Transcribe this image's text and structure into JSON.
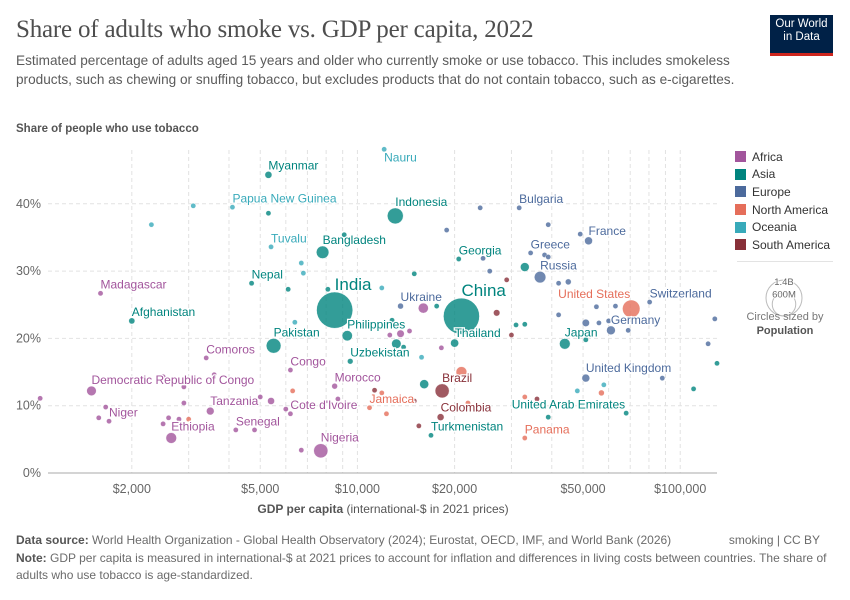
{
  "title": "Share of adults who smoke vs. GDP per capita, 2022",
  "subtitle": "Estimated percentage of adults aged 15 years and older who currently smoke or use tobacco. This includes smokeless products, such as chewing or snuffing tobacco, but excludes products that do not contain tobacco, such as e-cigarettes.",
  "logo": {
    "line1": "Our World",
    "line2": "in Data"
  },
  "footer": {
    "source_label": "Data source:",
    "source_text": " World Health Organization - Global Health Observatory (2024); Eurostat, OECD, IMF, and World Bank (2026)",
    "license": "smoking | CC BY",
    "note_label": "Note:",
    "note_text": " GDP per capita is measured in international-$ at 2021 prices to account for inflation and differences in living costs between countries. The share of adults who use tobacco is age-standardized."
  },
  "legend": {
    "items": [
      {
        "label": "Africa",
        "color": "#a2559c"
      },
      {
        "label": "Asia",
        "color": "#00847e"
      },
      {
        "label": "Europe",
        "color": "#4c6a9c"
      },
      {
        "label": "North America",
        "color": "#e56e5a"
      },
      {
        "label": "Oceania",
        "color": "#38aaba"
      },
      {
        "label": "South America",
        "color": "#883039"
      }
    ],
    "size_big": "1.4B",
    "size_small": "600M",
    "size_note": "Circles sized by",
    "size_var": "Population"
  },
  "chart_data": {
    "type": "scatter",
    "title": "Share of adults who smoke vs. GDP per capita, 2022",
    "ylabel": "Share of people who use tobacco",
    "xlabel_bold": "GDP per capita",
    "xlabel_rest": " (international-$ in 2021 prices)",
    "x_scale": "log",
    "xlim": [
      1100,
      130000
    ],
    "ylim": [
      0,
      48
    ],
    "grid": true,
    "legend_position": "right",
    "x_ticks": [
      {
        "v": 2000,
        "label": "$2,000"
      },
      {
        "v": 5000,
        "label": "$5,000"
      },
      {
        "v": 10000,
        "label": "$10,000"
      },
      {
        "v": 20000,
        "label": "$20,000"
      },
      {
        "v": 50000,
        "label": "$50,000"
      },
      {
        "v": 100000,
        "label": "$100,000"
      }
    ],
    "y_ticks": [
      {
        "v": 0,
        "label": "0%"
      },
      {
        "v": 10,
        "label": "10%"
      },
      {
        "v": 20,
        "label": "20%"
      },
      {
        "v": 30,
        "label": "30%"
      },
      {
        "v": 40,
        "label": "40%"
      }
    ],
    "points": [
      {
        "name": "Nauru",
        "continent": "Oceania",
        "gdp": 12100,
        "share": 48.1,
        "pop": 0.01
      },
      {
        "name": "Myanmar",
        "continent": "Asia",
        "gdp": 5300,
        "share": 44.3,
        "pop": 54
      },
      {
        "name": "Papua New Guinea",
        "continent": "Oceania",
        "gdp": 4100,
        "share": 39.5,
        "pop": 10
      },
      {
        "name": "Indonesia",
        "continent": "Asia",
        "gdp": 13100,
        "share": 38.2,
        "pop": 275
      },
      {
        "name": "Tuvalu",
        "continent": "Oceania",
        "gdp": 5400,
        "share": 33.6,
        "pop": 0.01
      },
      {
        "name": "Bangladesh",
        "continent": "Asia",
        "gdp": 7800,
        "share": 32.8,
        "pop": 171
      },
      {
        "name": "Nepal",
        "continent": "Asia",
        "gdp": 4700,
        "share": 28.2,
        "pop": 30
      },
      {
        "name": "Madagascar",
        "continent": "Africa",
        "gdp": 1600,
        "share": 26.7,
        "pop": 30
      },
      {
        "name": "India",
        "continent": "Asia",
        "gdp": 8500,
        "share": 24.2,
        "pop": 1420
      },
      {
        "name": "Afghanistan",
        "continent": "Asia",
        "gdp": 2000,
        "share": 22.6,
        "pop": 41
      },
      {
        "name": "Pakistan",
        "continent": "Asia",
        "gdp": 5500,
        "share": 18.9,
        "pop": 235
      },
      {
        "name": "Philippines",
        "continent": "Asia",
        "gdp": 9300,
        "share": 20.4,
        "pop": 115
      },
      {
        "name": "Uzbekistan",
        "continent": "Asia",
        "gdp": 9500,
        "share": 16.6,
        "pop": 35
      },
      {
        "name": "Comoros",
        "continent": "Africa",
        "gdp": 3400,
        "share": 17.1,
        "pop": 0.8
      },
      {
        "name": "Congo",
        "continent": "Africa",
        "gdp": 6200,
        "share": 15.3,
        "pop": 6
      },
      {
        "name": "Morocco",
        "continent": "Africa",
        "gdp": 8500,
        "share": 12.9,
        "pop": 37
      },
      {
        "name": "Democratic Republic of Congo",
        "continent": "Africa",
        "gdp": 1500,
        "share": 12.2,
        "pop": 100
      },
      {
        "name": "Tanzania",
        "continent": "Africa",
        "gdp": 3500,
        "share": 9.2,
        "pop": 65
      },
      {
        "name": "Niger",
        "continent": "Africa",
        "gdp": 1700,
        "share": 7.7,
        "pop": 26
      },
      {
        "name": "Ethiopia",
        "continent": "Africa",
        "gdp": 2650,
        "share": 5.2,
        "pop": 123
      },
      {
        "name": "Senegal",
        "continent": "Africa",
        "gdp": 4200,
        "share": 6.4,
        "pop": 17
      },
      {
        "name": "Cote d'Ivoire",
        "continent": "Africa",
        "gdp": 6200,
        "share": 8.8,
        "pop": 28
      },
      {
        "name": "Nigeria",
        "continent": "Africa",
        "gdp": 7700,
        "share": 3.3,
        "pop": 218
      },
      {
        "name": "Jamaica",
        "continent": "North America",
        "gdp": 10900,
        "share": 9.7,
        "pop": 2.8
      },
      {
        "name": "Ukraine",
        "continent": "Europe",
        "gdp": 13600,
        "share": 24.8,
        "pop": 38
      },
      {
        "name": "China",
        "continent": "Asia",
        "gdp": 21000,
        "share": 23.3,
        "pop": 1410
      },
      {
        "name": "Thailand",
        "continent": "Asia",
        "gdp": 20000,
        "share": 19.3,
        "pop": 72
      },
      {
        "name": "Georgia",
        "continent": "Asia",
        "gdp": 20600,
        "share": 31.8,
        "pop": 3.7
      },
      {
        "name": "Bulgaria",
        "continent": "Europe",
        "gdp": 31700,
        "share": 39.4,
        "pop": 6.8
      },
      {
        "name": "Greece",
        "continent": "Europe",
        "gdp": 34400,
        "share": 32.7,
        "pop": 10
      },
      {
        "name": "Russia",
        "continent": "Europe",
        "gdp": 36800,
        "share": 29.1,
        "pop": 144
      },
      {
        "name": "France",
        "continent": "Europe",
        "gdp": 52000,
        "share": 34.5,
        "pop": 68
      },
      {
        "name": "United States",
        "continent": "North America",
        "gdp": 70500,
        "share": 24.4,
        "pop": 333
      },
      {
        "name": "Switzerland",
        "continent": "Europe",
        "gdp": 80400,
        "share": 25.4,
        "pop": 8.8
      },
      {
        "name": "Germany",
        "continent": "Europe",
        "gdp": 61000,
        "share": 21.2,
        "pop": 84
      },
      {
        "name": "Japan",
        "continent": "Asia",
        "gdp": 43900,
        "share": 19.2,
        "pop": 124
      },
      {
        "name": "United Kingdom",
        "continent": "Europe",
        "gdp": 51000,
        "share": 14.1,
        "pop": 67
      },
      {
        "name": "United Arab Emirates",
        "continent": "Asia",
        "gdp": 68000,
        "share": 8.9,
        "pop": 9.4
      },
      {
        "name": "Brazil",
        "continent": "South America",
        "gdp": 18300,
        "share": 12.2,
        "pop": 215
      },
      {
        "name": "Colombia",
        "continent": "South America",
        "gdp": 18100,
        "share": 8.3,
        "pop": 52
      },
      {
        "name": "Turkmenistan",
        "continent": "Asia",
        "gdp": 16900,
        "share": 5.6,
        "pop": 6.4
      },
      {
        "name": "Panama",
        "continent": "North America",
        "gdp": 33000,
        "share": 5.2,
        "pop": 4.4
      },
      {
        "continent": "Oceania",
        "gdp": 3100,
        "share": 39.7,
        "pop": 1
      },
      {
        "continent": "Oceania",
        "gdp": 2300,
        "share": 36.9,
        "pop": 1
      },
      {
        "continent": "Asia",
        "gdp": 5300,
        "share": 38.6,
        "pop": 1
      },
      {
        "continent": "Asia",
        "gdp": 9100,
        "share": 35.4,
        "pop": 1
      },
      {
        "continent": "Oceania",
        "gdp": 6700,
        "share": 31.2,
        "pop": 1
      },
      {
        "continent": "Oceania",
        "gdp": 6800,
        "share": 29.7,
        "pop": 1
      },
      {
        "continent": "Asia",
        "gdp": 15000,
        "share": 29.6,
        "pop": 3
      },
      {
        "continent": "Asia",
        "gdp": 6100,
        "share": 27.3,
        "pop": 1
      },
      {
        "continent": "Asia",
        "gdp": 8100,
        "share": 27.3,
        "pop": 1
      },
      {
        "continent": "Oceania",
        "gdp": 11900,
        "share": 27.5,
        "pop": 1
      },
      {
        "continent": "Africa",
        "gdp": 16000,
        "share": 24.5,
        "pop": 110
      },
      {
        "continent": "Oceania",
        "gdp": 6400,
        "share": 22.4,
        "pop": 1
      },
      {
        "continent": "Asia",
        "gdp": 12800,
        "share": 22.7,
        "pop": 3
      },
      {
        "continent": "Africa",
        "gdp": 12600,
        "share": 20.5,
        "pop": 1
      },
      {
        "continent": "Africa",
        "gdp": 13600,
        "share": 20.7,
        "pop": 60
      },
      {
        "continent": "Africa",
        "gdp": 14500,
        "share": 21.1,
        "pop": 2
      },
      {
        "continent": "Asia",
        "gdp": 13200,
        "share": 19.2,
        "pop": 98
      },
      {
        "continent": "Asia",
        "gdp": 13900,
        "share": 18.7,
        "pop": 3
      },
      {
        "continent": "Oceania",
        "gdp": 15800,
        "share": 17.2,
        "pop": 1
      },
      {
        "continent": "Africa",
        "gdp": 3600,
        "share": 14.6,
        "pop": 1
      },
      {
        "continent": "Africa",
        "gdp": 2500,
        "share": 14.3,
        "pop": 1
      },
      {
        "continent": "Africa",
        "gdp": 2900,
        "share": 12.8,
        "pop": 2
      },
      {
        "continent": "Africa",
        "gdp": 1040,
        "share": 11.1,
        "pop": 2
      },
      {
        "continent": "Africa",
        "gdp": 1660,
        "share": 9.8,
        "pop": 3
      },
      {
        "continent": "Africa",
        "gdp": 2900,
        "share": 10.4,
        "pop": 3
      },
      {
        "continent": "Africa",
        "gdp": 5400,
        "share": 10.7,
        "pop": 54
      },
      {
        "continent": "Africa",
        "gdp": 5000,
        "share": 11.3,
        "pop": 2
      },
      {
        "continent": "North America",
        "gdp": 6300,
        "share": 12.2,
        "pop": 2
      },
      {
        "continent": "South America",
        "gdp": 11300,
        "share": 12.3,
        "pop": 2
      },
      {
        "continent": "North America",
        "gdp": 11900,
        "share": 11.9,
        "pop": 2
      },
      {
        "continent": "Africa",
        "gdp": 8700,
        "share": 11.0,
        "pop": 2
      },
      {
        "continent": "Africa",
        "gdp": 6000,
        "share": 9.5,
        "pop": 2
      },
      {
        "continent": "North America",
        "gdp": 12300,
        "share": 8.8,
        "pop": 2
      },
      {
        "continent": "South America",
        "gdp": 15000,
        "share": 10.7,
        "pop": 2
      },
      {
        "continent": "Africa",
        "gdp": 1580,
        "share": 8.2,
        "pop": 2
      },
      {
        "continent": "Africa",
        "gdp": 2600,
        "share": 8.2,
        "pop": 2
      },
      {
        "continent": "Africa",
        "gdp": 2800,
        "share": 8.0,
        "pop": 2
      },
      {
        "continent": "North America",
        "gdp": 3000,
        "share": 8.0,
        "pop": 2
      },
      {
        "continent": "Africa",
        "gdp": 2500,
        "share": 7.3,
        "pop": 2
      },
      {
        "continent": "Africa",
        "gdp": 4800,
        "share": 6.4,
        "pop": 2
      },
      {
        "continent": "Africa",
        "gdp": 6700,
        "share": 3.4,
        "pop": 15
      },
      {
        "continent": "South America",
        "gdp": 15500,
        "share": 7.0,
        "pop": 12
      },
      {
        "continent": "Asia",
        "gdp": 16100,
        "share": 13.2,
        "pop": 88
      },
      {
        "continent": "Europe",
        "gdp": 24000,
        "share": 39.4,
        "pop": 2
      },
      {
        "continent": "Europe",
        "gdp": 18900,
        "share": 36.1,
        "pop": 2
      },
      {
        "continent": "Europe",
        "gdp": 39000,
        "share": 36.9,
        "pop": 2
      },
      {
        "continent": "Europe",
        "gdp": 49000,
        "share": 35.5,
        "pop": 2
      },
      {
        "continent": "Europe",
        "gdp": 38000,
        "share": 32.4,
        "pop": 2
      },
      {
        "continent": "Europe",
        "gdp": 39000,
        "share": 32.1,
        "pop": 2
      },
      {
        "continent": "Europe",
        "gdp": 24500,
        "share": 31.9,
        "pop": 2
      },
      {
        "continent": "Asia",
        "gdp": 33000,
        "share": 30.6,
        "pop": 85
      },
      {
        "continent": "Europe",
        "gdp": 25700,
        "share": 30.0,
        "pop": 2
      },
      {
        "continent": "South America",
        "gdp": 29000,
        "share": 28.7,
        "pop": 2
      },
      {
        "continent": "Europe",
        "gdp": 42000,
        "share": 28.2,
        "pop": 3
      },
      {
        "continent": "Europe",
        "gdp": 45000,
        "share": 28.4,
        "pop": 38
      },
      {
        "continent": "Asia",
        "gdp": 17600,
        "share": 24.8,
        "pop": 2
      },
      {
        "continent": "South America",
        "gdp": 27000,
        "share": 23.8,
        "pop": 46
      },
      {
        "continent": "Europe",
        "gdp": 42000,
        "share": 23.5,
        "pop": 19
      },
      {
        "continent": "Europe",
        "gdp": 55000,
        "share": 24.7,
        "pop": 2
      },
      {
        "continent": "Europe",
        "gdp": 63000,
        "share": 24.8,
        "pop": 2
      },
      {
        "continent": "Europe",
        "gdp": 128000,
        "share": 22.9,
        "pop": 2
      },
      {
        "continent": "Europe",
        "gdp": 51000,
        "share": 22.3,
        "pop": 59
      },
      {
        "continent": "Europe",
        "gdp": 56000,
        "share": 22.3,
        "pop": 5
      },
      {
        "continent": "Europe",
        "gdp": 60000,
        "share": 22.6,
        "pop": 2
      },
      {
        "continent": "Europe",
        "gdp": 69000,
        "share": 21.2,
        "pop": 2
      },
      {
        "continent": "Asia",
        "gdp": 31000,
        "share": 22.0,
        "pop": 10
      },
      {
        "continent": "Asia",
        "gdp": 33000,
        "share": 22.1,
        "pop": 5
      },
      {
        "continent": "South America",
        "gdp": 30000,
        "share": 20.5,
        "pop": 2
      },
      {
        "continent": "Asia",
        "gdp": 51000,
        "share": 19.8,
        "pop": 30
      },
      {
        "continent": "Europe",
        "gdp": 122000,
        "share": 19.2,
        "pop": 2
      },
      {
        "continent": "Africa",
        "gdp": 18200,
        "share": 18.6,
        "pop": 2
      },
      {
        "continent": "Asia",
        "gdp": 130000,
        "share": 16.3,
        "pop": 2
      },
      {
        "continent": "North America",
        "gdp": 21000,
        "share": 15.0,
        "pop": 127
      },
      {
        "continent": "Europe",
        "gdp": 88000,
        "share": 14.1,
        "pop": 2
      },
      {
        "continent": "Oceania",
        "gdp": 58000,
        "share": 13.1,
        "pop": 5
      },
      {
        "continent": "Oceania",
        "gdp": 48000,
        "share": 12.2,
        "pop": 2
      },
      {
        "continent": "North America",
        "gdp": 57000,
        "share": 11.9,
        "pop": 38
      },
      {
        "continent": "Asia",
        "gdp": 110000,
        "share": 12.5,
        "pop": 2
      },
      {
        "continent": "North America",
        "gdp": 33000,
        "share": 11.3,
        "pop": 2
      },
      {
        "continent": "South America",
        "gdp": 36000,
        "share": 11.0,
        "pop": 2
      },
      {
        "continent": "North America",
        "gdp": 22000,
        "share": 10.4,
        "pop": 2
      },
      {
        "continent": "Asia",
        "gdp": 39000,
        "share": 8.3,
        "pop": 2
      }
    ]
  }
}
